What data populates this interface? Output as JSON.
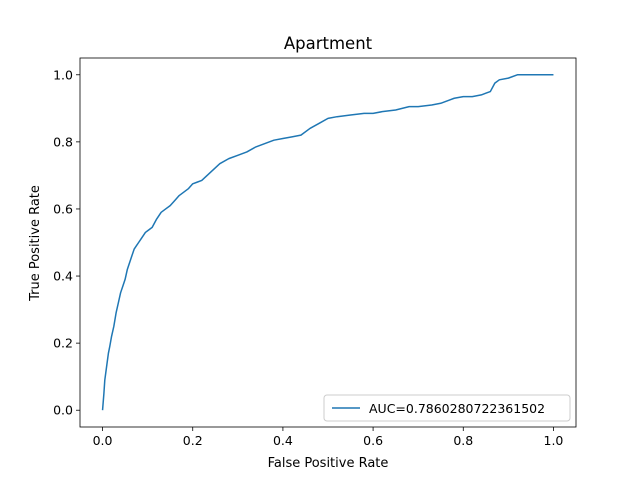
{
  "chart_data": {
    "type": "line",
    "title": "Apartment",
    "xlabel": "False Positive Rate",
    "ylabel": "True Positive Rate",
    "xlim": [
      -0.05,
      1.05
    ],
    "ylim": [
      -0.05,
      1.05
    ],
    "xticks": [
      0.0,
      0.2,
      0.4,
      0.6,
      0.8,
      1.0
    ],
    "yticks": [
      0.0,
      0.2,
      0.4,
      0.6,
      0.8,
      1.0
    ],
    "xtick_labels": [
      "0.0",
      "0.2",
      "0.4",
      "0.6",
      "0.8",
      "1.0"
    ],
    "ytick_labels": [
      "0.0",
      "0.2",
      "0.4",
      "0.6",
      "0.8",
      "1.0"
    ],
    "grid": false,
    "legend_position": "lower-right",
    "series": [
      {
        "name": "AUC=0.7860280722361502",
        "color": "#1f77b4",
        "x": [
          0.0,
          0.003,
          0.005,
          0.008,
          0.01,
          0.013,
          0.016,
          0.02,
          0.025,
          0.03,
          0.035,
          0.04,
          0.045,
          0.05,
          0.055,
          0.06,
          0.065,
          0.07,
          0.075,
          0.08,
          0.085,
          0.09,
          0.095,
          0.1,
          0.11,
          0.12,
          0.13,
          0.14,
          0.15,
          0.16,
          0.17,
          0.18,
          0.19,
          0.2,
          0.21,
          0.22,
          0.24,
          0.26,
          0.28,
          0.3,
          0.32,
          0.34,
          0.36,
          0.38,
          0.4,
          0.42,
          0.44,
          0.46,
          0.48,
          0.5,
          0.52,
          0.55,
          0.58,
          0.6,
          0.62,
          0.65,
          0.68,
          0.7,
          0.73,
          0.75,
          0.77,
          0.78,
          0.8,
          0.82,
          0.84,
          0.85,
          0.86,
          0.87,
          0.88,
          0.9,
          0.92,
          0.93,
          0.95,
          0.97,
          1.0
        ],
        "y": [
          0.0,
          0.05,
          0.09,
          0.12,
          0.14,
          0.17,
          0.19,
          0.22,
          0.25,
          0.29,
          0.32,
          0.35,
          0.37,
          0.39,
          0.42,
          0.44,
          0.46,
          0.48,
          0.49,
          0.5,
          0.51,
          0.52,
          0.53,
          0.535,
          0.545,
          0.57,
          0.59,
          0.6,
          0.61,
          0.625,
          0.64,
          0.65,
          0.66,
          0.675,
          0.68,
          0.685,
          0.71,
          0.735,
          0.75,
          0.76,
          0.77,
          0.785,
          0.795,
          0.805,
          0.81,
          0.815,
          0.82,
          0.84,
          0.855,
          0.87,
          0.875,
          0.88,
          0.885,
          0.885,
          0.89,
          0.895,
          0.905,
          0.905,
          0.91,
          0.915,
          0.925,
          0.93,
          0.935,
          0.935,
          0.94,
          0.945,
          0.95,
          0.975,
          0.985,
          0.99,
          1.0,
          1.0,
          1.0,
          1.0,
          1.0
        ]
      }
    ]
  }
}
